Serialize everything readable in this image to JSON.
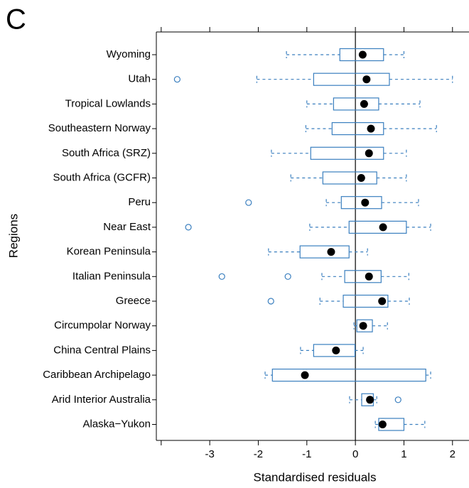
{
  "chart_data": {
    "type": "boxplot",
    "panel_label": "C",
    "xlabel": "Standardised residuals",
    "ylabel": "Regions",
    "categories": [
      "Wyoming",
      "Utah",
      "Tropical Lowlands",
      "Southeastern Norway",
      "South Africa (SRZ)",
      "South Africa (GCFR)",
      "Peru",
      "Near East",
      "Korean Peninsula",
      "Italian Peninsula",
      "Greece",
      "Circumpolar Norway",
      "China Central Plains",
      "Caribbean Archipelago",
      "Arid Interior Australia",
      "Alaska−Yukon"
    ],
    "whisker_low": [
      -1.42,
      -2.03,
      -1.0,
      -1.02,
      -1.73,
      -1.33,
      -0.6,
      -0.94,
      -1.79,
      -0.69,
      -0.73,
      -0.03,
      -1.13,
      -1.86,
      -0.12,
      0.41
    ],
    "q1": [
      -0.32,
      -0.86,
      -0.45,
      -0.48,
      -0.92,
      -0.67,
      -0.29,
      -0.13,
      -1.14,
      -0.22,
      -0.25,
      0.03,
      -0.86,
      -1.71,
      0.13,
      0.48
    ],
    "q3": [
      0.58,
      0.7,
      0.48,
      0.58,
      0.58,
      0.44,
      0.54,
      1.05,
      -0.13,
      0.53,
      0.67,
      0.35,
      -0.01,
      1.45,
      0.37,
      1.0
    ],
    "whisker_high": [
      1.0,
      2.0,
      1.33,
      1.67,
      1.05,
      1.05,
      1.3,
      1.55,
      0.25,
      1.1,
      1.11,
      0.66,
      0.16,
      1.55,
      0.44,
      1.43
    ],
    "mean": [
      0.15,
      0.23,
      0.18,
      0.32,
      0.28,
      0.12,
      0.2,
      0.57,
      -0.5,
      0.28,
      0.55,
      0.16,
      -0.4,
      -1.04,
      0.3,
      0.56
    ],
    "outliers": [
      [],
      [
        -3.67
      ],
      [],
      [],
      [],
      [],
      [
        -2.2
      ],
      [
        -3.44
      ],
      [],
      [
        -2.75,
        -1.39
      ],
      [
        -1.74
      ],
      [],
      [],
      [],
      [
        0.88
      ],
      []
    ],
    "box_color": "#3a7fbf",
    "mean_color": "#000000",
    "xlim": [
      -4.1,
      2.34
    ],
    "xticks": [
      -3,
      -2,
      -1,
      0,
      1,
      2
    ],
    "unlabeled_xticks": [
      -4
    ],
    "reference_line": 0
  }
}
